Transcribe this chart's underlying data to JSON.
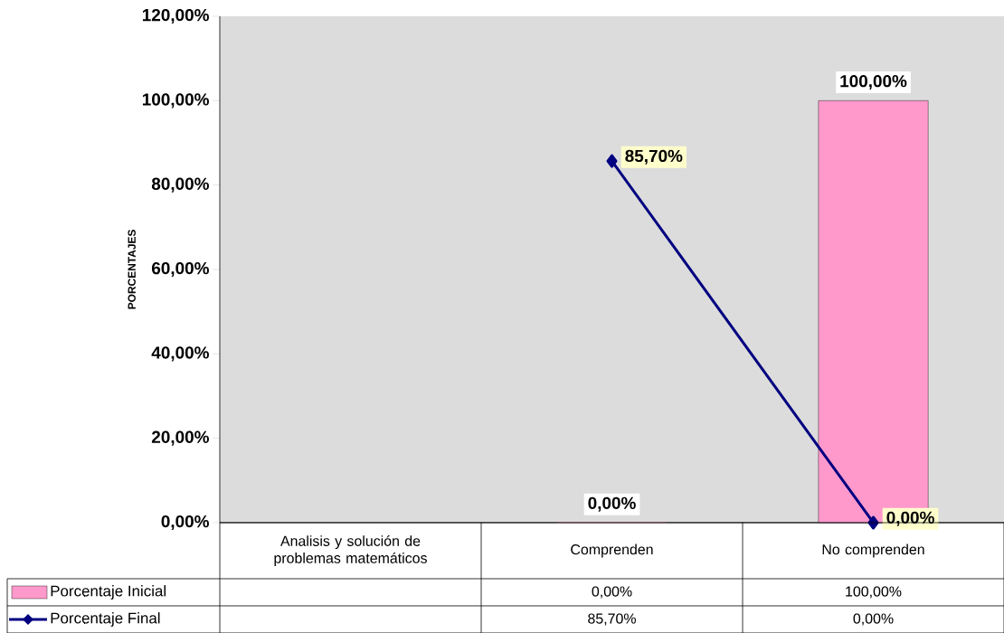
{
  "chart_data": {
    "type": "bar",
    "categories": [
      "Analisis y solución de problemas matemáticos",
      "Comprenden",
      "No comprenden"
    ],
    "ylabel": "PORCENTAJES",
    "ylim": [
      0,
      120
    ],
    "yticks": [
      {
        "value": 0,
        "label": "0,00%"
      },
      {
        "value": 20,
        "label": "20,00%"
      },
      {
        "value": 40,
        "label": "40,00%"
      },
      {
        "value": 60,
        "label": "60,00%"
      },
      {
        "value": 80,
        "label": "80,00%"
      },
      {
        "value": 100,
        "label": "100,00%"
      },
      {
        "value": 120,
        "label": "120,00%"
      }
    ],
    "series": [
      {
        "name": "Porcentaje Inicial",
        "color": "#ff99cc",
        "values": [
          null,
          0,
          100
        ],
        "value_labels": [
          null,
          "0,00%",
          "100,00%"
        ]
      },
      {
        "name": "Porcentaje Final",
        "type": "line",
        "color": "#000080",
        "values": [
          null,
          85.7,
          0
        ],
        "value_labels": [
          null,
          "85,70%",
          "0,00%"
        ]
      }
    ],
    "marker": "diamond",
    "legend": "bottom left",
    "grid": false
  }
}
